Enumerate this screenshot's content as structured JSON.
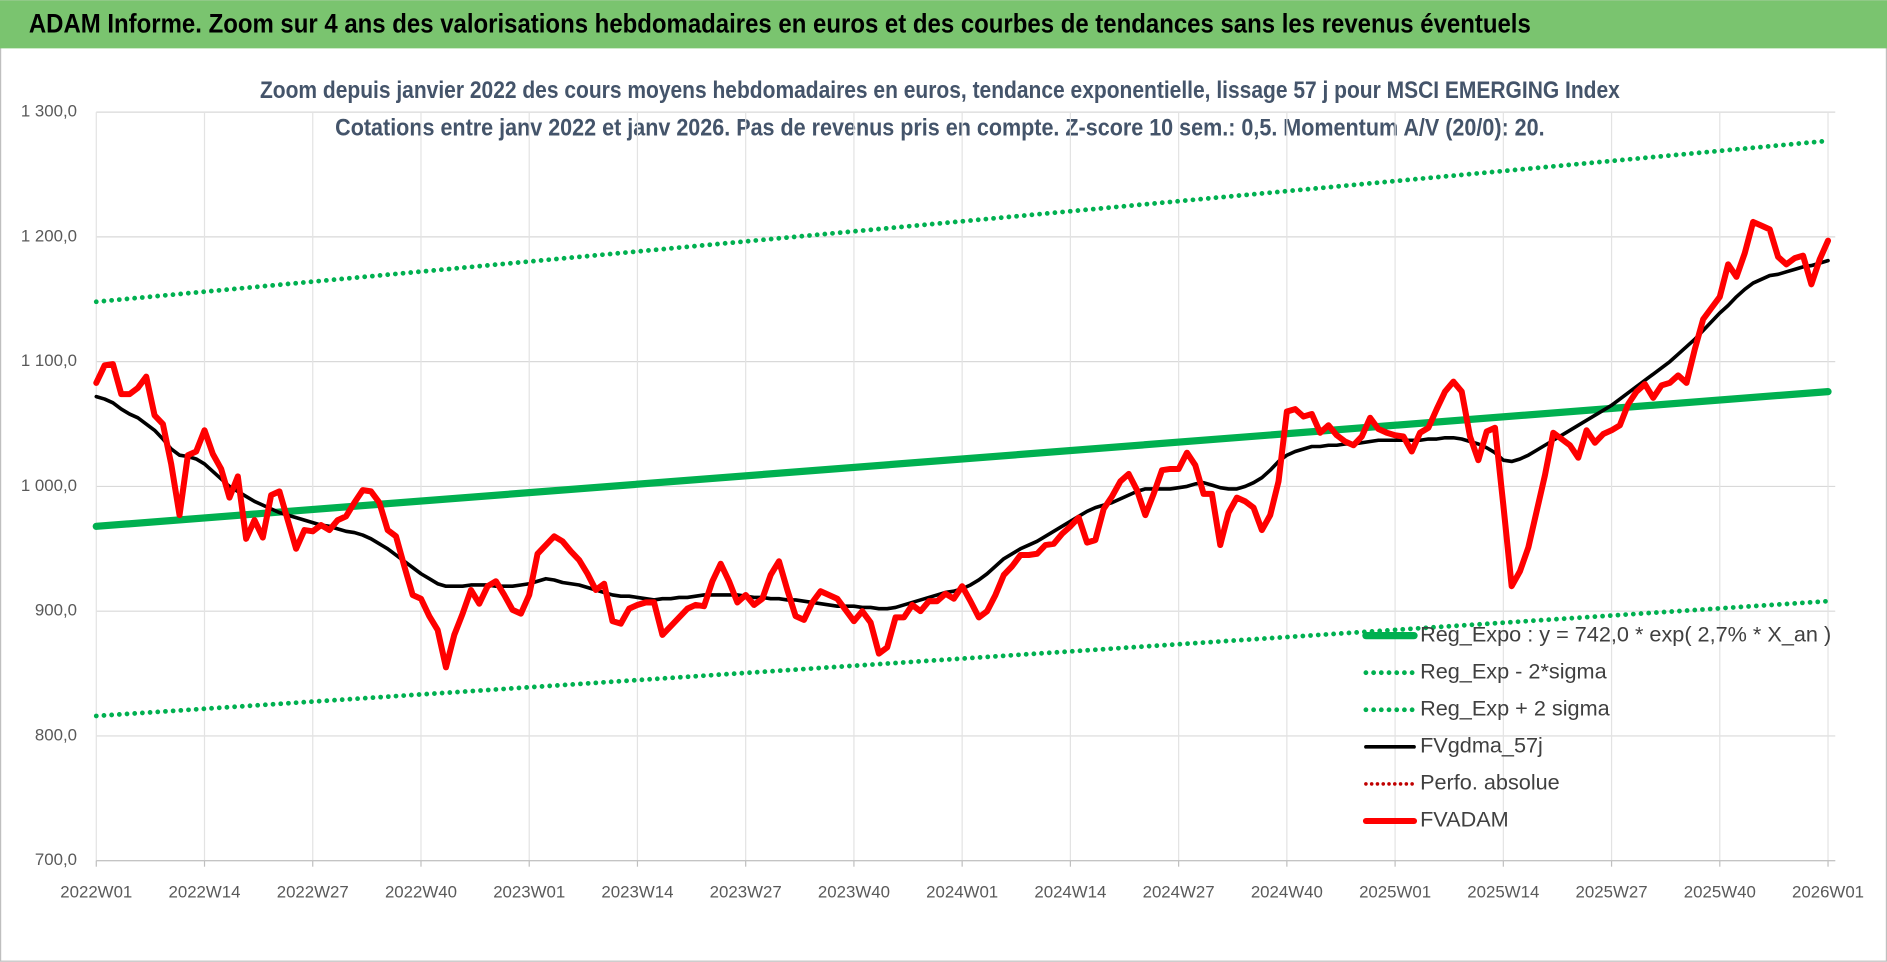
{
  "header": {
    "title": "ADAM Informe. Zoom sur 4 ans des valorisations hebdomadaires en euros et des courbes de tendances sans les revenus éventuels"
  },
  "chart_data": {
    "type": "line",
    "title": "Zoom depuis janvier 2022 des cours moyens hebdomadaires en euros, tendance exponentielle, lissage 57 j pour MSCI EMERGING Index",
    "subtitle": "Cotations entre janv 2022 et janv 2026. Pas de revenus pris en compte. Z-score 10 sem.: 0,5. Momentum A/V (20/0): 20.",
    "categories": [
      "2022W01",
      null,
      null,
      null,
      null,
      null,
      null,
      null,
      null,
      null,
      null,
      null,
      null,
      "2022W14",
      null,
      null,
      null,
      null,
      null,
      null,
      null,
      null,
      null,
      null,
      null,
      null,
      "2022W27",
      null,
      null,
      null,
      null,
      null,
      null,
      null,
      null,
      null,
      null,
      null,
      null,
      "2022W40",
      null,
      null,
      null,
      null,
      null,
      null,
      null,
      null,
      null,
      null,
      null,
      null,
      "2023W01",
      null,
      null,
      null,
      null,
      null,
      null,
      null,
      null,
      null,
      null,
      null,
      null,
      "2023W14",
      null,
      null,
      null,
      null,
      null,
      null,
      null,
      null,
      null,
      null,
      null,
      null,
      "2023W27",
      null,
      null,
      null,
      null,
      null,
      null,
      null,
      null,
      null,
      null,
      null,
      null,
      "2023W40",
      null,
      null,
      null,
      null,
      null,
      null,
      null,
      null,
      null,
      null,
      null,
      null,
      "2024W01",
      null,
      null,
      null,
      null,
      null,
      null,
      null,
      null,
      null,
      null,
      null,
      null,
      "2024W14",
      null,
      null,
      null,
      null,
      null,
      null,
      null,
      null,
      null,
      null,
      null,
      null,
      "2024W27",
      null,
      null,
      null,
      null,
      null,
      null,
      null,
      null,
      null,
      null,
      null,
      null,
      "2024W40",
      null,
      null,
      null,
      null,
      null,
      null,
      null,
      null,
      null,
      null,
      null,
      null,
      "2025W01",
      null,
      null,
      null,
      null,
      null,
      null,
      null,
      null,
      null,
      null,
      null,
      null,
      "2025W14",
      null,
      null,
      null,
      null,
      null,
      null,
      null,
      null,
      null,
      null,
      null,
      null,
      "2025W27",
      null,
      null,
      null,
      null,
      null,
      null,
      null,
      null,
      null,
      null,
      null,
      null,
      "2025W40",
      null,
      null,
      null,
      null,
      null,
      null,
      null,
      null,
      null,
      null,
      null,
      null,
      "2026W01"
    ],
    "ylim": [
      700,
      1300
    ],
    "yticks": [
      {
        "value": 700,
        "label": "700,0"
      },
      {
        "value": 800,
        "label": "800,0"
      },
      {
        "value": 900,
        "label": "900,0"
      },
      {
        "value": 1000,
        "label": "1 000,0"
      },
      {
        "value": 1100,
        "label": "1 100,0"
      },
      {
        "value": 1200,
        "label": "1 200,0"
      },
      {
        "value": 1300,
        "label": "1 300,0"
      }
    ],
    "grid": true,
    "trend_lines": [
      {
        "name": "Reg_Expo : y = 742,0 * exp( 2,7% *  X_an )",
        "color": "#00b050",
        "style": "solid",
        "values": [
          968,
          1076
        ]
      },
      {
        "name": "Reg_Exp - 2*sigma",
        "color": "#00b050",
        "style": "dotted",
        "values": [
          816,
          908
        ]
      },
      {
        "name": "Reg_Exp + 2 sigma",
        "color": "#00b050",
        "style": "dotted",
        "values": [
          1148,
          1277
        ]
      }
    ],
    "series": [
      {
        "name": "FVgdma_57j",
        "color": "#000000",
        "style": "solid",
        "values": [
          1072,
          1070,
          1067,
          1062,
          1058,
          1055,
          1050,
          1045,
          1038,
          1030,
          1025,
          1024,
          1022,
          1018,
          1012,
          1006,
          1000,
          996,
          992,
          988,
          985,
          982,
          979,
          977,
          975,
          973,
          971,
          969,
          968,
          966,
          964,
          963,
          961,
          958,
          954,
          950,
          945,
          940,
          935,
          930,
          926,
          922,
          920,
          920,
          920,
          921,
          921,
          921,
          920,
          920,
          920,
          921,
          922,
          924,
          926,
          925,
          923,
          922,
          921,
          919,
          917,
          915,
          913,
          912,
          912,
          911,
          910,
          909,
          910,
          910,
          911,
          911,
          912,
          913,
          913,
          913,
          913,
          913,
          912,
          911,
          911,
          910,
          910,
          909,
          909,
          908,
          907,
          906,
          905,
          904,
          904,
          904,
          903,
          903,
          902,
          902,
          903,
          905,
          907,
          909,
          911,
          913,
          915,
          916,
          918,
          921,
          925,
          930,
          936,
          942,
          946,
          950,
          953,
          956,
          960,
          964,
          968,
          972,
          976,
          980,
          983,
          985,
          987,
          990,
          993,
          996,
          998,
          998,
          998,
          998,
          999,
          1000,
          1002,
          1003,
          1001,
          999,
          998,
          998,
          1000,
          1003,
          1007,
          1013,
          1020,
          1025,
          1028,
          1030,
          1032,
          1032,
          1033,
          1033,
          1034,
          1034,
          1035,
          1036,
          1037,
          1037,
          1037,
          1037,
          1037,
          1037,
          1038,
          1038,
          1039,
          1039,
          1038,
          1036,
          1034,
          1031,
          1027,
          1021,
          1020,
          1022,
          1025,
          1029,
          1033,
          1037,
          1041,
          1045,
          1049,
          1053,
          1057,
          1061,
          1065,
          1070,
          1075,
          1080,
          1085,
          1090,
          1095,
          1100,
          1106,
          1112,
          1118,
          1125,
          1132,
          1139,
          1145,
          1152,
          1158,
          1163,
          1166,
          1169,
          1170,
          1172,
          1174,
          1176,
          1177,
          1179,
          1181
        ]
      },
      {
        "name": "Perfo. absolue",
        "color": "#c00000",
        "style": "dotted",
        "values": [
          null,
          null,
          null,
          null,
          null,
          null,
          null,
          null,
          null,
          null,
          null,
          null,
          null,
          null,
          null,
          null,
          null,
          null,
          null,
          null,
          null,
          null,
          null,
          null,
          null,
          null,
          null,
          null,
          null,
          null,
          null,
          null,
          null,
          null,
          null,
          null,
          null,
          null,
          null,
          null,
          null,
          null,
          null,
          null,
          null,
          null,
          null,
          null,
          null,
          null,
          null,
          null,
          null,
          null,
          null,
          null,
          null,
          null,
          null,
          null,
          null,
          null,
          null,
          null,
          null,
          null,
          null,
          null,
          null,
          null,
          null,
          null,
          null,
          null,
          null,
          null,
          null,
          null,
          null,
          null,
          null,
          null,
          null,
          null,
          null,
          null,
          null,
          null,
          null,
          null,
          null,
          null,
          null,
          null,
          null,
          null,
          null,
          null,
          null,
          null,
          null,
          null,
          null,
          null,
          null,
          null,
          null,
          null,
          null,
          null,
          null,
          null,
          null,
          null,
          null,
          null,
          null,
          null,
          null,
          null,
          null,
          null,
          null,
          null,
          null,
          null,
          null,
          null,
          null,
          null,
          null,
          null,
          null,
          null,
          null,
          null,
          null,
          null,
          null,
          null,
          null,
          null,
          null,
          null,
          null,
          null,
          null,
          null,
          null,
          null,
          null,
          null,
          null,
          null,
          null,
          null,
          null,
          null,
          null,
          null,
          null,
          null,
          null,
          null,
          null,
          null,
          null,
          null,
          null,
          null,
          null,
          null,
          null,
          null,
          null,
          null,
          null,
          null,
          null,
          null,
          null,
          null,
          null,
          null,
          null,
          null,
          null,
          null,
          null,
          null,
          null,
          null,
          null,
          null,
          null,
          null,
          null,
          null,
          null,
          null,
          null,
          null,
          null,
          null,
          null,
          null,
          null,
          null,
          null
        ]
      },
      {
        "name": "FVADAM",
        "color": "#ff0000",
        "style": "solid",
        "values": [
          1083,
          1097,
          1098,
          1074,
          1074,
          1079,
          1088,
          1057,
          1050,
          1018,
          977,
          1025,
          1028,
          1045,
          1026,
          1014,
          991,
          1008,
          958,
          973,
          959,
          993,
          996,
          973,
          950,
          965,
          964,
          969,
          965,
          973,
          976,
          987,
          997,
          996,
          987,
          965,
          960,
          936,
          913,
          910,
          896,
          885,
          855,
          881,
          898,
          917,
          906,
          920,
          924,
          913,
          901,
          898,
          913,
          946,
          953,
          960,
          956,
          948,
          941,
          930,
          917,
          922,
          892,
          890,
          902,
          905,
          907,
          907,
          881,
          888,
          895,
          902,
          905,
          904,
          924,
          938,
          924,
          907,
          913,
          905,
          910,
          929,
          940,
          917,
          896,
          893,
          907,
          916,
          913,
          910,
          901,
          892,
          900,
          891,
          866,
          871,
          895,
          895,
          905,
          900,
          908,
          908,
          914,
          910,
          920,
          908,
          895,
          900,
          913,
          929,
          936,
          945,
          945,
          946,
          953,
          954,
          962,
          968,
          975,
          955,
          957,
          982,
          992,
          1004,
          1010,
          997,
          977,
          994,
          1013,
          1014,
          1014,
          1027,
          1017,
          994,
          994,
          953,
          979,
          991,
          988,
          983,
          965,
          977,
          1004,
          1060,
          1062,
          1056,
          1058,
          1043,
          1049,
          1041,
          1036,
          1033,
          1040,
          1055,
          1046,
          1043,
          1041,
          1040,
          1028,
          1043,
          1047,
          1062,
          1076,
          1084,
          1076,
          1040,
          1021,
          1044,
          1047,
          985,
          920,
          932,
          951,
          980,
          1009,
          1043,
          1038,
          1033,
          1023,
          1045,
          1035,
          1042,
          1045,
          1049,
          1066,
          1076,
          1082,
          1071,
          1081,
          1083,
          1089,
          1083,
          1110,
          1134,
          1143,
          1152,
          1178,
          1168,
          1187,
          1212,
          1209,
          1206,
          1184,
          1178,
          1183,
          1185,
          1162,
          1182,
          1197
        ]
      }
    ]
  }
}
